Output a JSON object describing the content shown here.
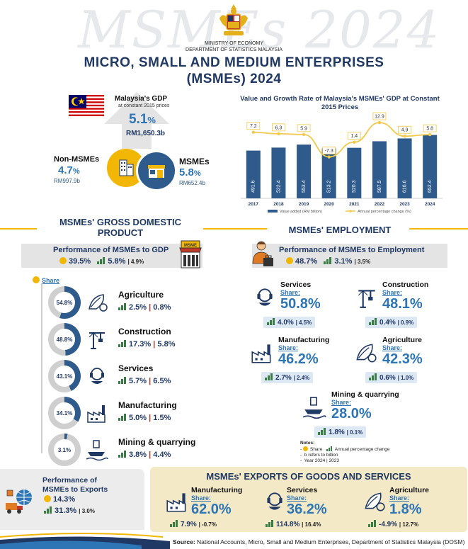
{
  "header": {
    "watermark": "MSMEs 2024",
    "ministry_line1": "MINISTRY OF ECONOMY",
    "ministry_line2": "DEPARTMENT OF STATISTICS MALAYSIA",
    "title_line1": "MICRO, SMALL AND MEDIUM ENTERPRISES",
    "title_line2": "(MSMEs) 2024"
  },
  "gdp": {
    "label": "Malaysia's GDP",
    "sub": "at constant 2015 prices",
    "growth": "5.1",
    "growth_unit": "%",
    "value": "RM1,650.3b",
    "non_msme_label": "Non-MSMEs",
    "non_msme_growth": "4.7",
    "non_msme_unit": "%",
    "non_msme_value": "RM997.9b",
    "msme_label": "MSMEs",
    "msme_growth": "5.8",
    "msme_unit": "%",
    "msme_value": "RM652.4b"
  },
  "chart_data": {
    "type": "bar",
    "title": "Value and Growth Rate of Malaysia's MSMEs' GDP at Constant 2015 Prices",
    "categories": [
      "2017",
      "2018",
      "2019",
      "2020",
      "2021",
      "2022",
      "2023",
      "2024"
    ],
    "series": [
      {
        "name": "Value added (RM billion)",
        "values": [
          491.6,
          522.4,
          553.4,
          513.2,
          520.3,
          587.5,
          616.6,
          652.4
        ],
        "color": "#2e5a8c"
      },
      {
        "name": "Annual percentage change (%)",
        "values": [
          7.2,
          6.3,
          5.9,
          -7.3,
          1.4,
          12.9,
          4.9,
          5.8
        ],
        "color": "#f2c94c"
      }
    ],
    "labels_bar": [
      "491.6",
      "522.4",
      "553.4",
      "513.2",
      "520.3",
      "587.5",
      "616.6",
      "652.4"
    ],
    "labels_line": [
      "7.2",
      "6.3",
      "5.9",
      "-7.3",
      "1.4",
      "12.9",
      "4.9",
      "5.8"
    ],
    "legend_bar": "Value added (RM billion)",
    "legend_line": "Annual percentage change (%)"
  },
  "gdp_section": {
    "title_line1": "MSMEs' GROSS DOMESTIC",
    "title_line2": "PRODUCT",
    "perf_title": "Performance of MSMEs to GDP",
    "perf_share": "39.5%",
    "perf_growth": "5.8%",
    "perf_prev": "4.9%",
    "share_label": "Share",
    "store_sign": "MSME",
    "sectors": [
      {
        "name": "Agriculture",
        "share": "54.8%",
        "share_value": 54.8,
        "growth": "2.5%",
        "prev": "0.8%"
      },
      {
        "name": "Construction",
        "share": "48.8%",
        "share_value": 48.8,
        "growth": "17.3%",
        "prev": "5.8%"
      },
      {
        "name": "Services",
        "share": "43.1%",
        "share_value": 43.1,
        "growth": "5.7%",
        "prev": "6.5%"
      },
      {
        "name": "Manufacturing",
        "share": "34.1%",
        "share_value": 34.1,
        "growth": "5.0%",
        "prev": "1.5%"
      },
      {
        "name": "Mining & quarrying",
        "share": "3.1%",
        "share_value": 3.1,
        "growth": "3.8%",
        "prev": "4.4%"
      }
    ]
  },
  "employment": {
    "title": "MSMEs' EMPLOYMENT",
    "perf_title": "Performance of MSMEs to Employment",
    "perf_share": "48.7%",
    "perf_growth": "3.1%",
    "perf_prev": "3.5%",
    "share_label": "Share",
    "sectors": [
      {
        "name": "Services",
        "share": "50.8%",
        "growth": "4.0%",
        "prev": "4.5%"
      },
      {
        "name": "Construction",
        "share": "48.1%",
        "growth": "0.4%",
        "prev": "0.9%"
      },
      {
        "name": "Manufacturing",
        "share": "46.2%",
        "growth": "2.7%",
        "prev": "2.4%"
      },
      {
        "name": "Agriculture",
        "share": "42.3%",
        "growth": "0.6%",
        "prev": "1.0%"
      },
      {
        "name": "Mining  & quarrying",
        "share": "28.0%",
        "growth": "1.8%",
        "prev": "0.1%"
      }
    ]
  },
  "notes": {
    "title": "Notes:",
    "share": "Share",
    "apc": "Annual percentage change",
    "billion": "b refers to billion",
    "year": "Year 2024 | 2023"
  },
  "exports": {
    "perf_line1": "Performance  of",
    "perf_line2": "MSMEs  to Exports",
    "perf_share": "14.3%",
    "perf_growth": "31.3%",
    "perf_prev": "3.0%",
    "title": "MSMEs' EXPORTS OF GOODS AND SERVICES",
    "share_label": "Share:",
    "sectors": [
      {
        "name": "Manufacturing",
        "share": "62.0%",
        "growth": "7.9%",
        "prev": "-0.7%"
      },
      {
        "name": "Services",
        "share": "36.2%",
        "growth": "114.8%",
        "prev": "16.4%"
      },
      {
        "name": "Agriculture",
        "share": "1.8%",
        "growth": "-4.9%",
        "prev": "12.7%"
      }
    ]
  },
  "source": {
    "label": "Source:",
    "text": "National Accounts, Micro, Small and Medium Enterprises, Department of Statistics Malaysia (DOSM)"
  },
  "colors": {
    "navy": "#1f3864",
    "blue": "#2e75b6",
    "gold": "#f2b705",
    "grey": "#e4e4e4"
  }
}
